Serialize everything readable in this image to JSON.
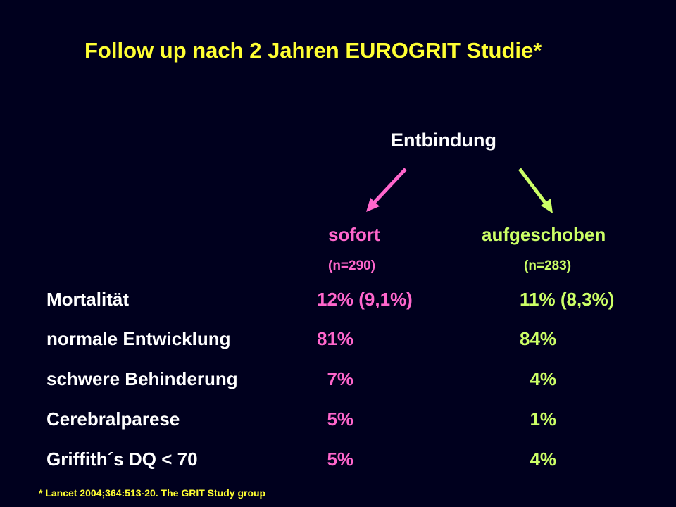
{
  "title": "Follow up nach 2 Jahren EUROGRIT Studie*",
  "delivery_label": "Entbindung",
  "groups": [
    {
      "name": "sofort",
      "n": "(n=290)"
    },
    {
      "name": "aufgeschoben",
      "n": "(n=283)"
    }
  ],
  "rows": [
    {
      "label": "Mortalität",
      "sofort": "12% (9,1%)",
      "aufgeschoben": "11% (8,3%)"
    },
    {
      "label": "normale Entwicklung",
      "sofort": "81%",
      "aufgeschoben": "84%"
    },
    {
      "label": "schwere Behinderung",
      "sofort": "  7%",
      "aufgeschoben": "  4%"
    },
    {
      "label": "Cerebralparese",
      "sofort": "  5%",
      "aufgeschoben": "  1%"
    },
    {
      "label": "Griffith´s DQ < 70",
      "sofort": "  5%",
      "aufgeschoben": "  4%"
    }
  ],
  "footnote": "* Lancet 2004;364:513-20. The GRIT Study group",
  "colors": {
    "background": "#00001e",
    "title": "#ffff33",
    "sofort": "#ff66cc",
    "aufgeschoben": "#ccff66"
  }
}
